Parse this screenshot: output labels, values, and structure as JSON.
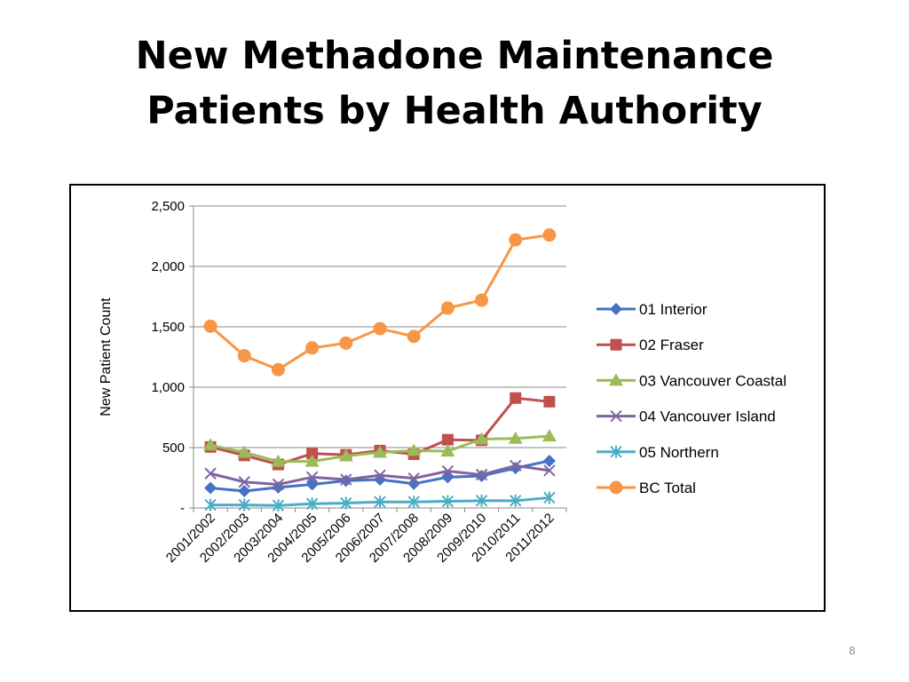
{
  "slide": {
    "title_line1": "New Methadone Maintenance",
    "title_line2": "Patients by Health Authority",
    "page_number": "8"
  },
  "chart_data": {
    "type": "line",
    "title": "",
    "xlabel": "",
    "ylabel": "New Patient Count",
    "categories": [
      "2001/2002",
      "2002/2003",
      "2003/2004",
      "2004/2005",
      "2005/2006",
      "2006/2007",
      "2007/2008",
      "2008/2009",
      "2009/2010",
      "2010/2011",
      "2011/2012"
    ],
    "ylim": [
      0,
      2500
    ],
    "yticks": [
      0,
      500,
      1000,
      1500,
      2000,
      2500
    ],
    "ytick_labels": [
      "-",
      "500",
      "1,000",
      "1,500",
      "2,000",
      "2,500"
    ],
    "grid": true,
    "legend_position": "right",
    "series": [
      {
        "name": "01 Interior",
        "color": "#4472C4",
        "marker": "diamond",
        "values": [
          165,
          140,
          170,
          195,
          225,
          235,
          200,
          255,
          265,
          330,
          390
        ]
      },
      {
        "name": "02 Fraser",
        "color": "#C0504D",
        "marker": "square",
        "values": [
          505,
          435,
          360,
          450,
          440,
          475,
          445,
          565,
          560,
          910,
          880
        ]
      },
      {
        "name": "03 Vancouver Coastal",
        "color": "#9BBB59",
        "marker": "triangle",
        "values": [
          520,
          460,
          385,
          385,
          430,
          460,
          475,
          470,
          570,
          575,
          595
        ]
      },
      {
        "name": "04 Vancouver Island",
        "color": "#8064A2",
        "marker": "x",
        "values": [
          285,
          215,
          195,
          255,
          235,
          270,
          245,
          305,
          275,
          350,
          310
        ]
      },
      {
        "name": "05 Northern",
        "color": "#4BACC6",
        "marker": "star",
        "values": [
          25,
          25,
          20,
          35,
          40,
          50,
          50,
          55,
          60,
          60,
          85
        ]
      },
      {
        "name": "BC Total",
        "color": "#F79646",
        "marker": "circle",
        "values": [
          1505,
          1260,
          1145,
          1325,
          1365,
          1485,
          1420,
          1655,
          1720,
          2220,
          2260
        ]
      }
    ]
  }
}
